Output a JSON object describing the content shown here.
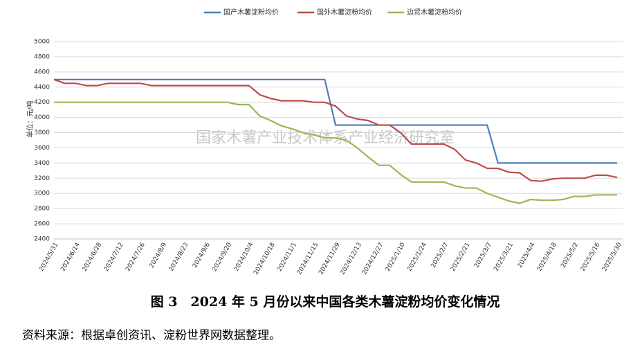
{
  "chart_data": {
    "type": "line",
    "title": "图 3　2024 年 5 月份以来中国各类木薯淀粉均价变化情况",
    "source": "资料来源：根据卓创资讯、淀粉世界网数据整理。",
    "y_label": "单位：元/吨",
    "watermark": "国家木薯产业技术体系产业经济研究室",
    "categories": [
      "2024/5/31",
      null,
      "2024/6/14",
      null,
      "2024/6/28",
      null,
      "2024/7/12",
      null,
      "2024/7/26",
      null,
      "2024/8/9",
      null,
      "2024/8/23",
      null,
      "2024/9/6",
      null,
      "2024/9/20",
      null,
      "2024/10/4",
      null,
      "2024/10/18",
      null,
      "2024/11/1",
      null,
      "2024/11/15",
      null,
      "2024/11/29",
      null,
      "2024/12/13",
      null,
      "2024/12/27",
      null,
      "2025/1/10",
      null,
      "2025/1/24",
      null,
      "2025/2/7",
      null,
      "2025/2/21",
      null,
      "2025/3/7",
      null,
      "2025/3/21",
      null,
      "2025/4/4",
      null,
      "2025/4/18",
      null,
      "2025/5/2",
      null,
      "2025/5/16",
      null,
      "2025/5/30"
    ],
    "series": [
      {
        "name": "国产木薯淀粉均价",
        "color": "#4a7ebb",
        "values": [
          4500,
          4500,
          4500,
          4500,
          4500,
          4500,
          4500,
          4500,
          4500,
          4500,
          4500,
          4500,
          4500,
          4500,
          4500,
          4500,
          4500,
          4500,
          4500,
          4500,
          4500,
          4500,
          4500,
          4500,
          4500,
          4500,
          3900,
          3900,
          3900,
          3900,
          3900,
          3900,
          3900,
          3900,
          3900,
          3900,
          3900,
          3900,
          3900,
          3900,
          3900,
          3400,
          3400,
          3400,
          3400,
          3400,
          3400,
          3400,
          3400,
          3400,
          3400,
          3400,
          3400
        ]
      },
      {
        "name": "国外木薯淀粉均价",
        "color": "#be4b48",
        "values": [
          4500,
          4450,
          4450,
          4420,
          4420,
          4450,
          4450,
          4450,
          4450,
          4420,
          4420,
          4420,
          4420,
          4420,
          4420,
          4420,
          4420,
          4420,
          4420,
          4300,
          4250,
          4220,
          4220,
          4220,
          4200,
          4200,
          4150,
          4020,
          3980,
          3960,
          3900,
          3900,
          3800,
          3650,
          3650,
          3650,
          3650,
          3580,
          3440,
          3400,
          3330,
          3330,
          3280,
          3270,
          3170,
          3160,
          3190,
          3200,
          3200,
          3200,
          3240,
          3240,
          3210
        ]
      },
      {
        "name": "边贸木薯淀粉均价",
        "color": "#98b954",
        "values": [
          4200,
          4200,
          4200,
          4200,
          4200,
          4200,
          4200,
          4200,
          4200,
          4200,
          4200,
          4200,
          4200,
          4200,
          4200,
          4200,
          4200,
          4170,
          4170,
          4020,
          3960,
          3890,
          3850,
          3800,
          3770,
          3730,
          3730,
          3700,
          3600,
          3480,
          3370,
          3370,
          3250,
          3150,
          3150,
          3150,
          3150,
          3100,
          3070,
          3070,
          3000,
          2950,
          2900,
          2870,
          2920,
          2910,
          2910,
          2920,
          2960,
          2960,
          2980,
          2980,
          2980
        ]
      }
    ],
    "ylim": [
      2400,
      5000
    ],
    "yticks": [
      2400,
      2600,
      2800,
      3000,
      3200,
      3400,
      3600,
      3800,
      4000,
      4200,
      4400,
      4600,
      4800,
      5000
    ],
    "grid": true
  }
}
